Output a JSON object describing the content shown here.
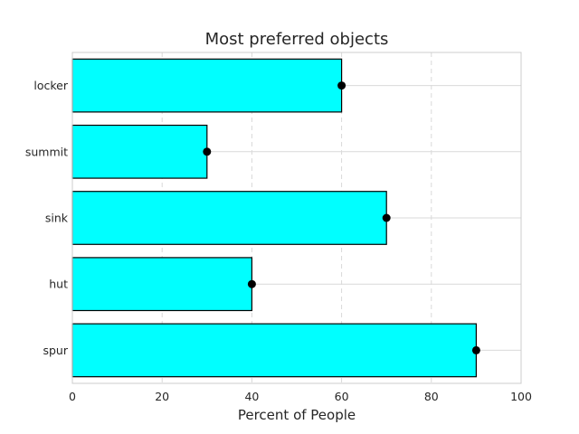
{
  "chart_data": {
    "type": "bar",
    "orientation": "horizontal",
    "title": "Most preferred objects",
    "xlabel": "Percent of People",
    "ylabel": "",
    "categories": [
      "spur",
      "hut",
      "sink",
      "summit",
      "locker"
    ],
    "values": [
      90,
      40,
      70,
      30,
      60
    ],
    "xlim": [
      0,
      100
    ],
    "xticks": [
      0,
      20,
      40,
      60,
      80,
      100
    ],
    "markers": "black dot at end of each bar",
    "grid": true,
    "colors": {
      "bar_fill": "#00ffff",
      "bar_edge": "#000000",
      "marker": "#000000",
      "grid": "#d9d9d9",
      "frame": "#cccccc",
      "text": "#262626"
    }
  }
}
